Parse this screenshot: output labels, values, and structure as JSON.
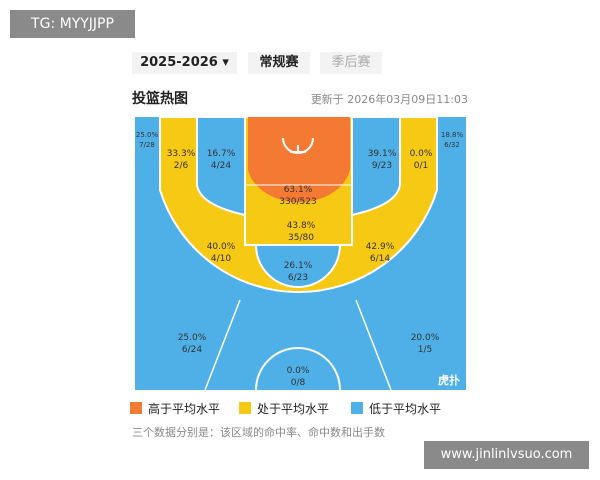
{
  "watermark": "TG: MYYJJPP",
  "tabs": {
    "season": "2025-2026",
    "regular": "常规赛",
    "playoffs": "季后赛"
  },
  "header": {
    "title": "投篮热图",
    "updated": "更新于 2026年03月09日11:03"
  },
  "zones": [
    {
      "pct": "25.0%",
      "shots": "7/28"
    },
    {
      "pct": "33.3%",
      "shots": "2/6"
    },
    {
      "pct": "16.7%",
      "shots": "4/24"
    },
    {
      "pct": "63.1%",
      "shots": "330/523"
    },
    {
      "pct": "39.1%",
      "shots": "9/23"
    },
    {
      "pct": "0.0%",
      "shots": "0/1"
    },
    {
      "pct": "18.8%",
      "shots": "6/32"
    },
    {
      "pct": "40.0%",
      "shots": "4/10"
    },
    {
      "pct": "43.8%",
      "shots": "35/80"
    },
    {
      "pct": "42.9%",
      "shots": "6/14"
    },
    {
      "pct": "26.1%",
      "shots": "6/23"
    },
    {
      "pct": "25.0%",
      "shots": "6/24"
    },
    {
      "pct": "20.0%",
      "shots": "1/5"
    },
    {
      "pct": "0.0%",
      "shots": "0/8"
    }
  ],
  "logo": "虎扑",
  "legend": [
    "高于平均水平",
    "处于平均水平",
    "低于平均水平"
  ],
  "note": "三个数据分别是：该区域的命中率、命中数和出手数",
  "site": "www.jinlinlvsuo.com"
}
